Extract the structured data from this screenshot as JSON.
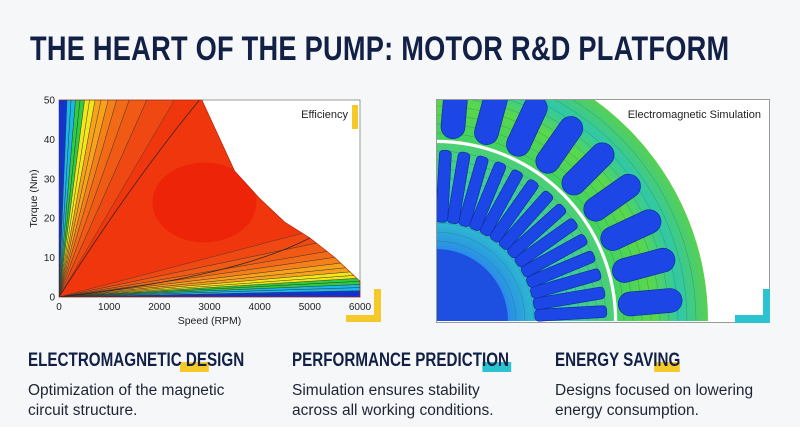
{
  "title": "THE HEART OF THE PUMP: MOTOR R&D PLATFORM",
  "colors": {
    "navy": "#122046",
    "yellow": "#f5c92a",
    "cyan": "#2cc3d1"
  },
  "left_panel": {
    "label": "Efficiency",
    "chart_data": {
      "type": "heatmap",
      "title": "Efficiency",
      "xlabel": "Speed (RPM)",
      "ylabel": "Torque (Nm)",
      "xlim": [
        0,
        6000
      ],
      "ylim": [
        0,
        50
      ],
      "xticks": [
        "0",
        "1000",
        "2000",
        "3000",
        "4000",
        "5000",
        "6000"
      ],
      "yticks": [
        "0",
        "10",
        "20",
        "30",
        "40",
        "50"
      ],
      "envelope": {
        "speed": [
          0,
          2850,
          3500,
          4000,
          4500,
          5000,
          5500,
          6000,
          6000
        ],
        "torque": [
          50,
          50,
          32,
          25,
          19,
          15,
          10,
          4,
          0
        ]
      },
      "colormap": [
        "#1033e0",
        "#18b8e8",
        "#2ecc40",
        "#f2e61a",
        "#f7a21a",
        "#f05a14",
        "#ee2a0a"
      ],
      "grid": false
    }
  },
  "right_panel": {
    "label": "Electromagnetic Simulation"
  },
  "features": [
    {
      "heading": "ELECTROMAGNETIC DESIGN",
      "lines": [
        "Optimization of the magnetic",
        "circuit structure."
      ]
    },
    {
      "heading": "PERFORMANCE PREDICTION",
      "lines": [
        "Simulation ensures stability",
        "across all working conditions."
      ]
    },
    {
      "heading": "ENERGY SAVING",
      "lines": [
        "Designs focused on lowering",
        "energy consumption."
      ]
    }
  ]
}
